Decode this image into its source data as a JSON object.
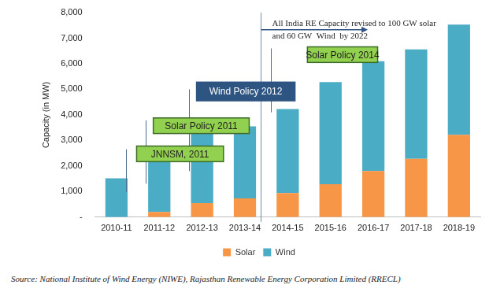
{
  "chart_data": {
    "type": "bar",
    "categories": [
      "2010-11",
      "2011-12",
      "2012-13",
      "2013-14",
      "2014-15",
      "2015-16",
      "2016-17",
      "2017-18",
      "2018-19"
    ],
    "series": [
      {
        "name": "Solar",
        "color": "#f79646",
        "values": [
          0,
          200,
          550,
          730,
          940,
          1290,
          1800,
          2280,
          3220
        ]
      },
      {
        "name": "Wind",
        "color": "#4bacc6",
        "values": [
          1520,
          2100,
          2750,
          2820,
          3290,
          3990,
          4300,
          4280,
          4310
        ]
      }
    ],
    "stacked": true,
    "y_label": "Capacity (in MW)",
    "ylim": [
      0,
      8000
    ],
    "yticks": [
      {
        "value": 0,
        "label": "-"
      },
      {
        "value": 1000,
        "label": "1,000"
      },
      {
        "value": 2000,
        "label": "2,000"
      },
      {
        "value": 3000,
        "label": "3,000"
      },
      {
        "value": 4000,
        "label": "4,000"
      },
      {
        "value": 5000,
        "label": "5,000"
      },
      {
        "value": 6000,
        "label": "6,000"
      },
      {
        "value": 7000,
        "label": "7,000"
      },
      {
        "value": 8000,
        "label": "8,000"
      }
    ],
    "grid": false,
    "legend": "bottom",
    "annotations": [
      "JNNSM, 2011",
      "Solar Policy 2011",
      "Wind Policy 2012",
      "Solar Policy 2014"
    ],
    "note": [
      "All India RE Capacity revised to 100 GW solar",
      "and 60 GW  Wind  by 2022"
    ],
    "source": "Source: National Institute of Wind Energy (NIWE), Rajasthan Renewable Energy Corporation Limited (RRECL)"
  }
}
